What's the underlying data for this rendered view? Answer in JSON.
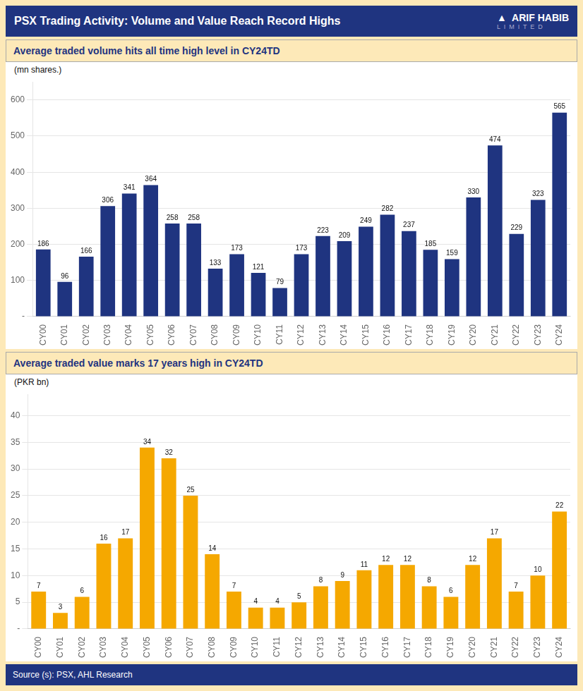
{
  "title": "PSX Trading Activity: Volume and Value Reach Record Highs",
  "annotations": [
    "▲  ARIF HABIB",
    "L  I  M  I  T  E  D"
  ],
  "source": "Source (s): PSX, AHL Research",
  "chart_data": [
    {
      "type": "bar",
      "subtitle": "Average traded volume hits all time high level in CY24TD",
      "ylabel": "(mn shares.)",
      "categories": [
        "CY00",
        "CY01",
        "CY02",
        "CY03",
        "CY04",
        "CY05",
        "CY06",
        "CY07",
        "CY08",
        "CY09",
        "CY10",
        "CY11",
        "CY12",
        "CY13",
        "CY14",
        "CY15",
        "CY16",
        "CY17",
        "CY18",
        "CY19",
        "CY20",
        "CY21",
        "CY22",
        "CY23",
        "CY24"
      ],
      "values": [
        186,
        96,
        166,
        306,
        341,
        364,
        258,
        258,
        133,
        173,
        121,
        79,
        173,
        223,
        209,
        249,
        282,
        237,
        185,
        159,
        330,
        474,
        229,
        323,
        565
      ],
      "color": "#1f3480",
      "ylim": [
        0,
        650
      ],
      "yticks": [
        {
          "value": 0,
          "label": "-"
        },
        100,
        200,
        300,
        400,
        500,
        600
      ],
      "grid": true,
      "data_labels": true
    },
    {
      "type": "bar",
      "subtitle": "Average traded value marks 17 years high in CY24TD",
      "ylabel": "(PKR bn)",
      "categories": [
        "CY00",
        "CY01",
        "CY02",
        "CY03",
        "CY04",
        "CY05",
        "CY06",
        "CY07",
        "CY08",
        "CY09",
        "CY10",
        "CY11",
        "CY12",
        "CY13",
        "CY14",
        "CY15",
        "CY16",
        "CY17",
        "CY18",
        "CY19",
        "CY20",
        "CY21",
        "CY22",
        "CY23",
        "CY24"
      ],
      "values": [
        7,
        3,
        6,
        16,
        17,
        34,
        32,
        25,
        14,
        7,
        4,
        4,
        5,
        8,
        9,
        11,
        12,
        12,
        8,
        6,
        12,
        17,
        7,
        10,
        22
      ],
      "color": "#f5a800",
      "ylim": [
        0,
        44
      ],
      "yticks": [
        {
          "value": 0,
          "label": "-"
        },
        5,
        10,
        15,
        20,
        25,
        30,
        35,
        40
      ],
      "grid": true,
      "data_labels": true
    }
  ]
}
